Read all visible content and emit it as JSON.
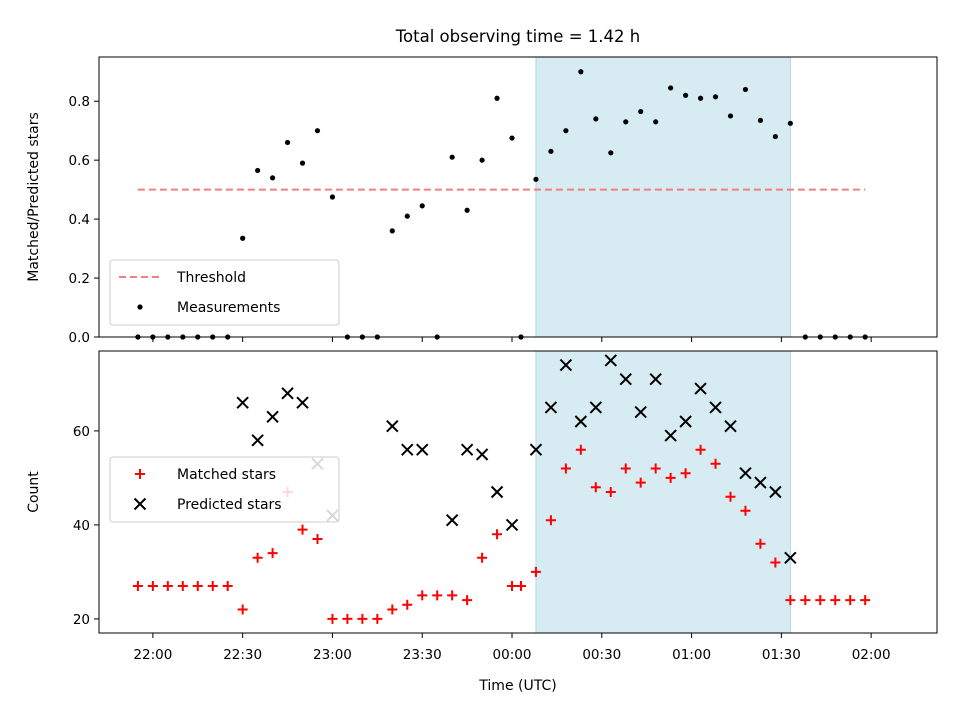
{
  "title": "Total observing time = 1.42 h",
  "chart_data": [
    {
      "type": "scatter",
      "panel": "top",
      "ylabel": "Matched/Predicted stars",
      "xlabel": "",
      "ylim": [
        0,
        0.95
      ],
      "xlim": [
        "21:42",
        "02:22"
      ],
      "yticks": [
        0.0,
        0.2,
        0.4,
        0.6,
        0.8
      ],
      "ytick_labels": [
        "0.0",
        "0.2",
        "0.4",
        "0.6",
        "0.8"
      ],
      "shaded_span": [
        "00:08",
        "01:33"
      ],
      "shade_color": "#add8e6",
      "threshold": {
        "name": "Threshold",
        "y": 0.5,
        "from": "21:55",
        "to": "01:58",
        "color": "#f08080",
        "style": "dashed"
      },
      "series": [
        {
          "name": "Measurements",
          "color": "#000000",
          "marker": "dot",
          "points": [
            {
              "x": "21:55",
              "y": 0
            },
            {
              "x": "22:00",
              "y": 0
            },
            {
              "x": "22:05",
              "y": 0
            },
            {
              "x": "22:10",
              "y": 0
            },
            {
              "x": "22:15",
              "y": 0
            },
            {
              "x": "22:20",
              "y": 0
            },
            {
              "x": "22:25",
              "y": 0
            },
            {
              "x": "22:30",
              "y": 0.335
            },
            {
              "x": "22:35",
              "y": 0.565
            },
            {
              "x": "22:40",
              "y": 0.54
            },
            {
              "x": "22:45",
              "y": 0.66
            },
            {
              "x": "22:50",
              "y": 0.59
            },
            {
              "x": "22:55",
              "y": 0.7
            },
            {
              "x": "23:00",
              "y": 0.475
            },
            {
              "x": "23:05",
              "y": 0
            },
            {
              "x": "23:10",
              "y": 0
            },
            {
              "x": "23:15",
              "y": 0
            },
            {
              "x": "23:20",
              "y": 0.36
            },
            {
              "x": "23:25",
              "y": 0.41
            },
            {
              "x": "23:30",
              "y": 0.445
            },
            {
              "x": "23:35",
              "y": 0
            },
            {
              "x": "23:40",
              "y": 0.61
            },
            {
              "x": "23:45",
              "y": 0.43
            },
            {
              "x": "23:50",
              "y": 0.6
            },
            {
              "x": "23:55",
              "y": 0.81
            },
            {
              "x": "00:00",
              "y": 0.675
            },
            {
              "x": "00:03",
              "y": 0
            },
            {
              "x": "00:08",
              "y": 0.535
            },
            {
              "x": "00:13",
              "y": 0.63
            },
            {
              "x": "00:18",
              "y": 0.7
            },
            {
              "x": "00:23",
              "y": 0.9
            },
            {
              "x": "00:28",
              "y": 0.74
            },
            {
              "x": "00:33",
              "y": 0.625
            },
            {
              "x": "00:38",
              "y": 0.73
            },
            {
              "x": "00:43",
              "y": 0.765
            },
            {
              "x": "00:48",
              "y": 0.73
            },
            {
              "x": "00:53",
              "y": 0.845
            },
            {
              "x": "00:58",
              "y": 0.82
            },
            {
              "x": "01:03",
              "y": 0.81
            },
            {
              "x": "01:08",
              "y": 0.815
            },
            {
              "x": "01:13",
              "y": 0.75
            },
            {
              "x": "01:18",
              "y": 0.84
            },
            {
              "x": "01:23",
              "y": 0.735
            },
            {
              "x": "01:28",
              "y": 0.68
            },
            {
              "x": "01:33",
              "y": 0.725
            },
            {
              "x": "01:38",
              "y": 0
            },
            {
              "x": "01:43",
              "y": 0
            },
            {
              "x": "01:48",
              "y": 0
            },
            {
              "x": "01:53",
              "y": 0
            },
            {
              "x": "01:58",
              "y": 0
            }
          ]
        }
      ],
      "legend": {
        "placement": "lower-left",
        "entries": [
          "Threshold",
          "Measurements"
        ]
      }
    },
    {
      "type": "scatter",
      "panel": "bottom",
      "ylabel": "Count",
      "xlabel": "Time (UTC)",
      "ylim": [
        17,
        77
      ],
      "xlim": [
        "21:42",
        "02:22"
      ],
      "yticks": [
        20,
        40,
        60
      ],
      "ytick_labels": [
        "20",
        "40",
        "60"
      ],
      "xticks": [
        "22:00",
        "22:30",
        "23:00",
        "23:30",
        "00:00",
        "00:30",
        "01:00",
        "01:30",
        "02:00"
      ],
      "shaded_span": [
        "00:08",
        "01:33"
      ],
      "shade_color": "#add8e6",
      "series": [
        {
          "name": "Matched stars",
          "color": "#ff0000",
          "marker": "plus",
          "points": [
            {
              "x": "21:55",
              "y": 27
            },
            {
              "x": "22:00",
              "y": 27
            },
            {
              "x": "22:05",
              "y": 27
            },
            {
              "x": "22:10",
              "y": 27
            },
            {
              "x": "22:15",
              "y": 27
            },
            {
              "x": "22:20",
              "y": 27
            },
            {
              "x": "22:25",
              "y": 27
            },
            {
              "x": "22:30",
              "y": 22
            },
            {
              "x": "22:35",
              "y": 33
            },
            {
              "x": "22:40",
              "y": 34
            },
            {
              "x": "22:45",
              "y": 47
            },
            {
              "x": "22:50",
              "y": 39
            },
            {
              "x": "22:55",
              "y": 37
            },
            {
              "x": "23:00",
              "y": 20
            },
            {
              "x": "23:05",
              "y": 20
            },
            {
              "x": "23:10",
              "y": 20
            },
            {
              "x": "23:15",
              "y": 20
            },
            {
              "x": "23:20",
              "y": 22
            },
            {
              "x": "23:25",
              "y": 23
            },
            {
              "x": "23:30",
              "y": 25
            },
            {
              "x": "23:35",
              "y": 25
            },
            {
              "x": "23:40",
              "y": 25
            },
            {
              "x": "23:45",
              "y": 24
            },
            {
              "x": "23:50",
              "y": 33
            },
            {
              "x": "23:55",
              "y": 38
            },
            {
              "x": "00:00",
              "y": 27
            },
            {
              "x": "00:03",
              "y": 27
            },
            {
              "x": "00:08",
              "y": 30
            },
            {
              "x": "00:13",
              "y": 41
            },
            {
              "x": "00:18",
              "y": 52
            },
            {
              "x": "00:23",
              "y": 56
            },
            {
              "x": "00:28",
              "y": 48
            },
            {
              "x": "00:33",
              "y": 47
            },
            {
              "x": "00:38",
              "y": 52
            },
            {
              "x": "00:43",
              "y": 49
            },
            {
              "x": "00:48",
              "y": 52
            },
            {
              "x": "00:53",
              "y": 50
            },
            {
              "x": "00:58",
              "y": 51
            },
            {
              "x": "01:03",
              "y": 56
            },
            {
              "x": "01:08",
              "y": 53
            },
            {
              "x": "01:13",
              "y": 46
            },
            {
              "x": "01:18",
              "y": 43
            },
            {
              "x": "01:23",
              "y": 36
            },
            {
              "x": "01:28",
              "y": 32
            },
            {
              "x": "01:33",
              "y": 24
            },
            {
              "x": "01:38",
              "y": 24
            },
            {
              "x": "01:43",
              "y": 24
            },
            {
              "x": "01:48",
              "y": 24
            },
            {
              "x": "01:53",
              "y": 24
            },
            {
              "x": "01:58",
              "y": 24
            }
          ]
        },
        {
          "name": "Predicted stars",
          "color": "#000000",
          "marker": "x",
          "points": [
            {
              "x": "22:30",
              "y": 66
            },
            {
              "x": "22:35",
              "y": 58
            },
            {
              "x": "22:40",
              "y": 63
            },
            {
              "x": "22:45",
              "y": 68
            },
            {
              "x": "22:50",
              "y": 66
            },
            {
              "x": "22:55",
              "y": 53
            },
            {
              "x": "23:00",
              "y": 42
            },
            {
              "x": "23:20",
              "y": 61
            },
            {
              "x": "23:25",
              "y": 56
            },
            {
              "x": "23:30",
              "y": 56
            },
            {
              "x": "23:40",
              "y": 41
            },
            {
              "x": "23:45",
              "y": 56
            },
            {
              "x": "23:50",
              "y": 55
            },
            {
              "x": "23:55",
              "y": 47
            },
            {
              "x": "00:00",
              "y": 40
            },
            {
              "x": "00:08",
              "y": 56
            },
            {
              "x": "00:13",
              "y": 65
            },
            {
              "x": "00:18",
              "y": 74
            },
            {
              "x": "00:23",
              "y": 62
            },
            {
              "x": "00:28",
              "y": 65
            },
            {
              "x": "00:33",
              "y": 75
            },
            {
              "x": "00:38",
              "y": 71
            },
            {
              "x": "00:43",
              "y": 64
            },
            {
              "x": "00:48",
              "y": 71
            },
            {
              "x": "00:53",
              "y": 59
            },
            {
              "x": "00:58",
              "y": 62
            },
            {
              "x": "01:03",
              "y": 69
            },
            {
              "x": "01:08",
              "y": 65
            },
            {
              "x": "01:13",
              "y": 61
            },
            {
              "x": "01:18",
              "y": 51
            },
            {
              "x": "01:23",
              "y": 49
            },
            {
              "x": "01:28",
              "y": 47
            },
            {
              "x": "01:33",
              "y": 33
            }
          ]
        }
      ],
      "legend": {
        "placement": "center-left",
        "entries": [
          "Matched stars",
          "Predicted stars"
        ]
      }
    }
  ]
}
